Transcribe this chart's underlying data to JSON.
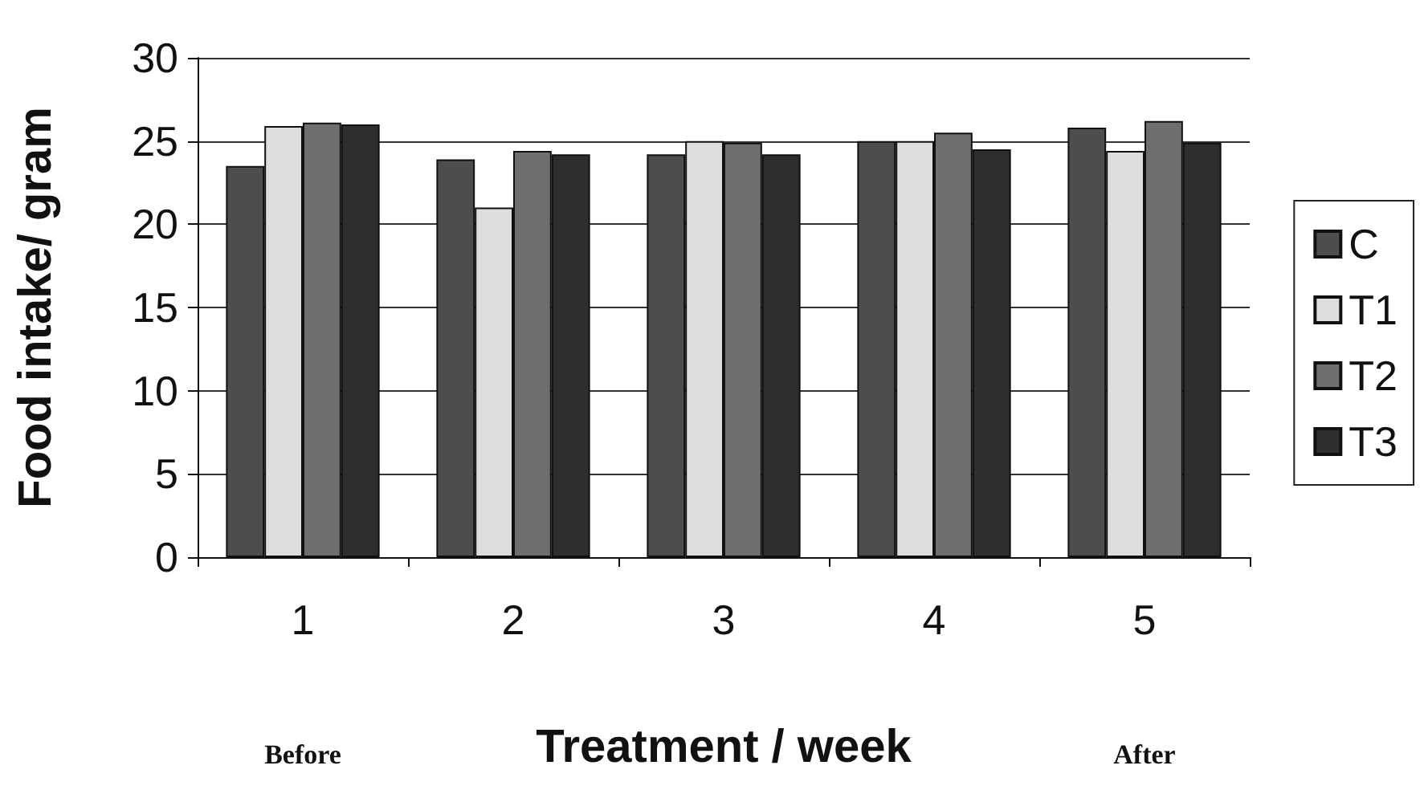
{
  "chart_data": {
    "type": "bar",
    "xlabel": "Treatment / week",
    "ylabel": "Food intake/ gram",
    "categories": [
      "1",
      "2",
      "3",
      "4",
      "5"
    ],
    "series": [
      {
        "name": "C",
        "color": "#4d4d4d",
        "values": [
          23.5,
          23.9,
          24.2,
          25.0,
          25.8
        ]
      },
      {
        "name": "T1",
        "color": "#dddddd",
        "values": [
          25.9,
          21.0,
          25.0,
          25.0,
          24.4
        ]
      },
      {
        "name": "T2",
        "color": "#6e6e6e",
        "values": [
          26.1,
          24.4,
          24.9,
          25.5,
          26.2
        ]
      },
      {
        "name": "T3",
        "color": "#2e2e2e",
        "values": [
          26.0,
          24.2,
          24.2,
          24.5,
          24.9
        ]
      }
    ],
    "ylim": [
      0,
      30
    ],
    "yticks": [
      0,
      5,
      10,
      15,
      20,
      25,
      30
    ],
    "grid": "y",
    "legend": "right",
    "annotations": [
      "Before",
      "After"
    ]
  }
}
